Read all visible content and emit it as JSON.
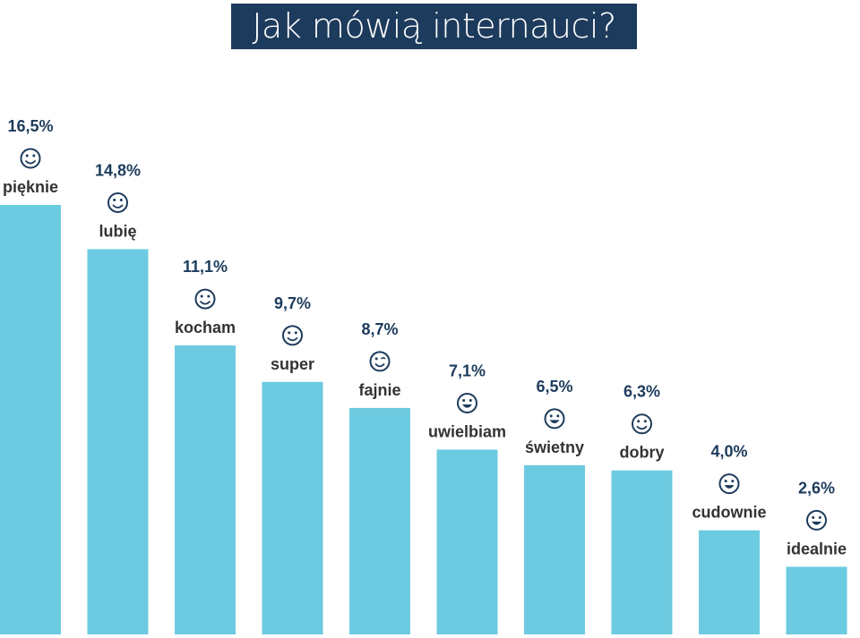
{
  "title": "Jak mówią internauci?",
  "colors": {
    "bar": "#6ccbe0",
    "title_bg": "#1d3b5c",
    "value_text": "#1d3b5c",
    "label_text": "#333333"
  },
  "chart_data": {
    "type": "bar",
    "title": "Jak mówią internauci?",
    "unit": "%",
    "categories": [
      "pięknie",
      "lubię",
      "kocham",
      "super",
      "fajnie",
      "uwielbiam",
      "świetny",
      "dobry",
      "cudownie",
      "idealnie"
    ],
    "values": [
      16.5,
      14.8,
      11.1,
      9.7,
      8.7,
      7.1,
      6.5,
      6.3,
      4.0,
      2.6
    ],
    "value_labels": [
      "16,5%",
      "14,8%",
      "11,1%",
      "9,7%",
      "8,7%",
      "7,1%",
      "6,5%",
      "6,3%",
      "4,0%",
      "2,6%"
    ],
    "icons": [
      "smiley-icon",
      "smiley-icon",
      "smiley-icon",
      "smiley-icon",
      "winking-smiley-icon",
      "grinning-smiley-icon",
      "grinning-smiley-icon",
      "smiley-icon",
      "grinning-smiley-icon",
      "grinning-smiley-icon"
    ],
    "ylim": [
      0,
      16.5
    ],
    "grid": false,
    "legend": "none"
  }
}
